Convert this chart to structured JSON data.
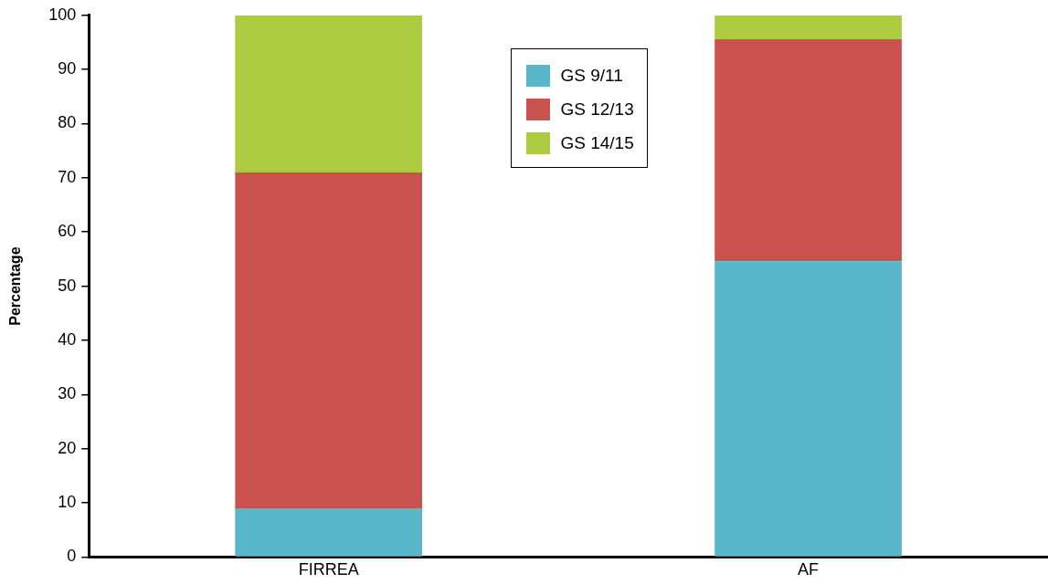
{
  "chart_data": {
    "type": "bar",
    "stacked": true,
    "ylabel": "Percentage",
    "categories": [
      "FIRREA",
      "AF"
    ],
    "series": [
      {
        "name": "GS 9/11",
        "color": "#58b6cb",
        "values": [
          9,
          54.6
        ]
      },
      {
        "name": "GS 12/13",
        "color": "#c9524e",
        "values": [
          62,
          41
        ]
      },
      {
        "name": "GS 14/15",
        "color": "#adcb41",
        "values": [
          29,
          4.4
        ]
      }
    ],
    "ylim": [
      0,
      100
    ],
    "yticks": [
      0,
      10,
      20,
      30,
      40,
      50,
      60,
      70,
      80,
      90,
      100
    ],
    "grid": false,
    "legend": "top"
  }
}
